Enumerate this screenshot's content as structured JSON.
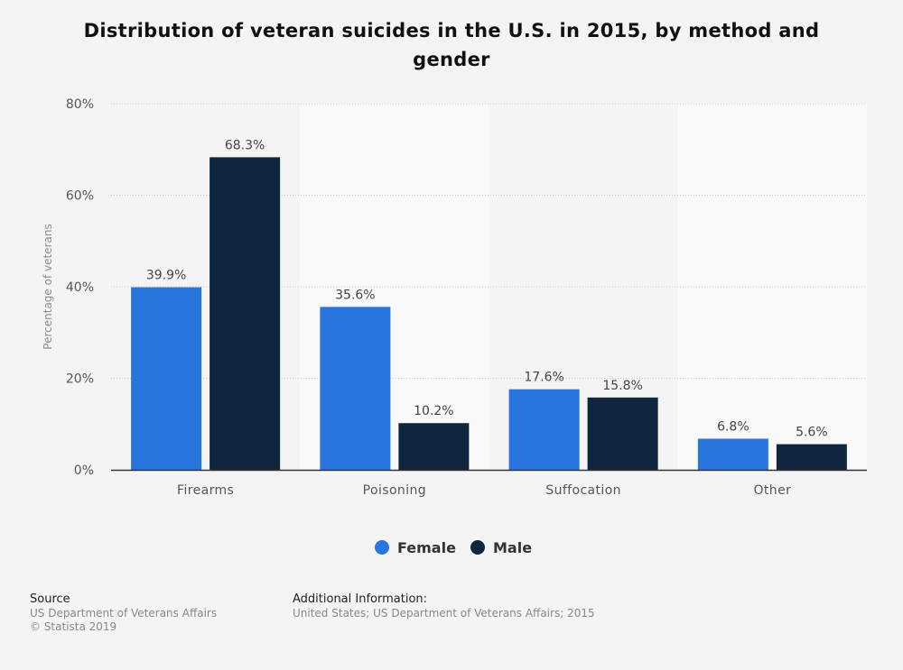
{
  "chart_data": {
    "type": "bar",
    "title": "Distribution of veteran suicides in the U.S. in 2015, by method and gender",
    "xlabel": "",
    "ylabel": "Percentage of veterans",
    "ylim": [
      0,
      80
    ],
    "yticks": [
      "0%",
      "20%",
      "40%",
      "60%",
      "80%"
    ],
    "ytick_values": [
      0,
      20,
      40,
      60,
      80
    ],
    "categories": [
      "Firearms",
      "Poisoning",
      "Suffocation",
      "Other"
    ],
    "series": [
      {
        "name": "Female",
        "color": "#2876dd",
        "values": [
          39.9,
          35.6,
          17.6,
          6.8
        ],
        "labels": [
          "39.9%",
          "35.6%",
          "17.6%",
          "6.8%"
        ]
      },
      {
        "name": "Male",
        "color": "#10263f",
        "values": [
          68.3,
          10.2,
          15.8,
          5.6
        ],
        "labels": [
          "68.3%",
          "10.2%",
          "15.8%",
          "5.6%"
        ]
      }
    ],
    "grid": true,
    "legend": "bottom-center"
  },
  "footer": {
    "source_label": "Source",
    "source_lines": [
      "US Department of Veterans Affairs",
      "© Statista 2019"
    ],
    "additional_label": "Additional Information:",
    "additional_text": "United States; US Department of Veterans Affairs; 2015"
  }
}
